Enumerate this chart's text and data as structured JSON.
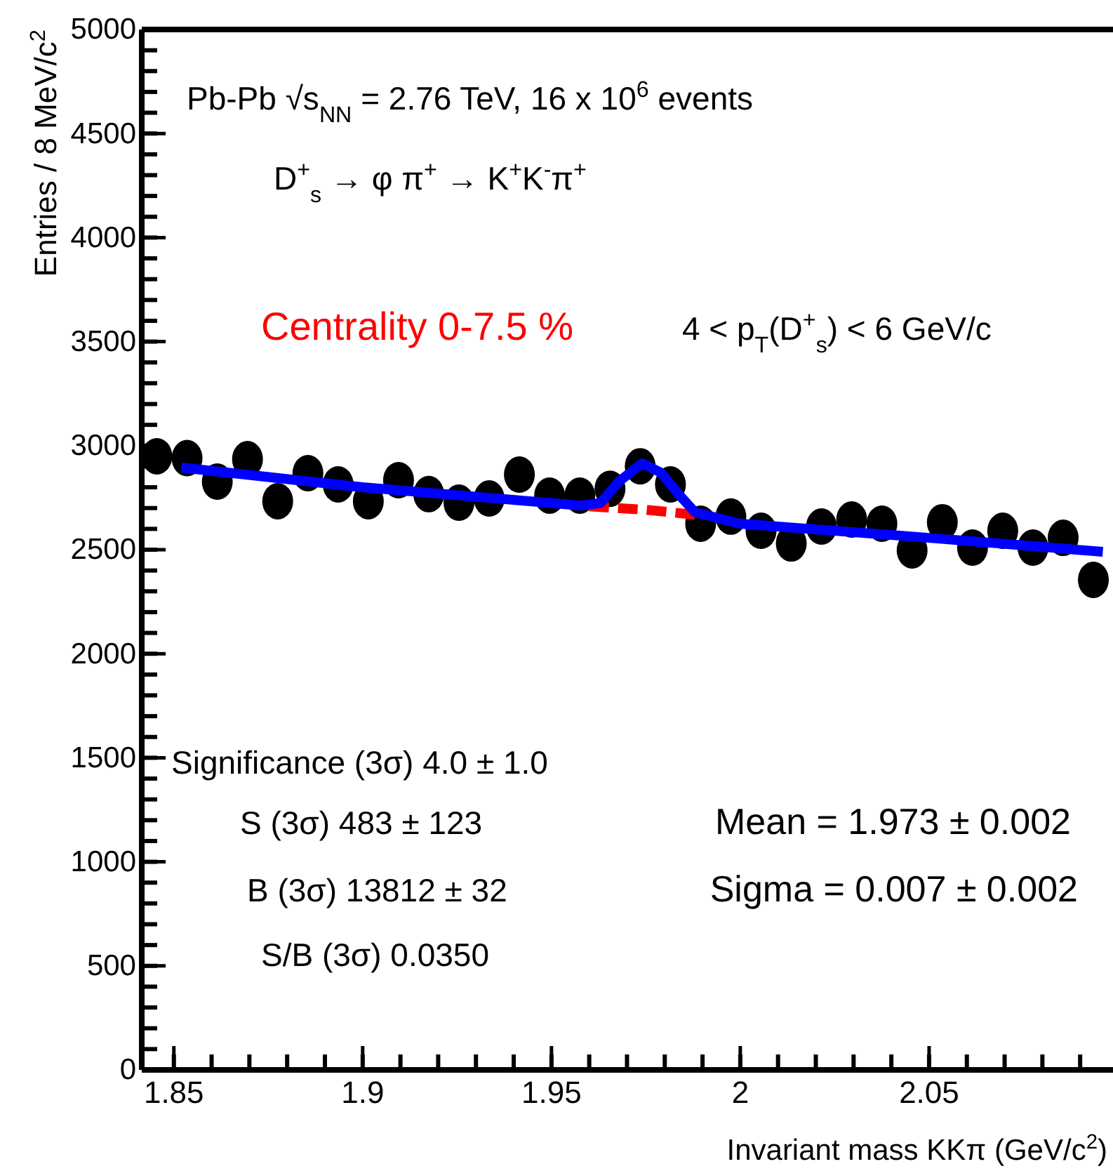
{
  "chart_data": {
    "type": "scatter",
    "xlabel": "Invariant mass KKπ (GeV/c$^{2}$)",
    "ylabel": "Entries / 8 MeV/c$^{2}$",
    "xlim": [
      1.8415,
      2.0987
    ],
    "ylim": [
      0,
      5000
    ],
    "xticks": [
      1.85,
      1.9,
      1.95,
      2,
      2.05
    ],
    "yticks": [
      0,
      500,
      1000,
      1500,
      2000,
      2500,
      3000,
      3500,
      4000,
      4500,
      5000
    ],
    "grid": false,
    "series": [
      {
        "marker": "circle",
        "color": "#000000",
        "x": [
          1.8455,
          1.8535,
          1.8615,
          1.8695,
          1.8775,
          1.8855,
          1.8935,
          1.9015,
          1.9095,
          1.9175,
          1.9255,
          1.9335,
          1.9415,
          1.9495,
          1.9575,
          1.9655,
          1.9735,
          1.9815,
          1.9895,
          1.9975,
          2.0055,
          2.0135,
          2.0215,
          2.0295,
          2.0375,
          2.0455,
          2.0535,
          2.0615,
          2.0695,
          2.0775,
          2.0855,
          2.0935
        ],
        "values": [
          2949,
          2940,
          2827,
          2935,
          2733,
          2868,
          2814,
          2733,
          2834,
          2767,
          2726,
          2746,
          2861,
          2760,
          2760,
          2793,
          2901,
          2814,
          2625,
          2659,
          2591,
          2530,
          2611,
          2645,
          2625,
          2497,
          2632,
          2510,
          2591,
          2510,
          2557,
          2355
        ]
      },
      {
        "type": "line",
        "color": "#ff0000",
        "line_style": "dashed",
        "x": [
          1.96,
          1.975,
          1.988
        ],
        "values": [
          2708,
          2692,
          2668
        ]
      },
      {
        "type": "line",
        "color": "#0000ff",
        "line_style": "solid",
        "x": [
          1.852,
          1.9,
          1.958,
          1.963,
          1.968,
          1.974,
          1.979,
          1.984,
          1.988,
          2.0,
          2.05,
          2.096
        ],
        "values": [
          2895,
          2800,
          2712,
          2725,
          2830,
          2915,
          2870,
          2760,
          2680,
          2625,
          2557,
          2490
        ]
      }
    ],
    "annotations": [
      "Pb-Pb √s$_{NN}$ = 2.76 TeV, 16 x 10$^{6}$ events",
      "D$^{+}$$_{s}$ → φ π$^{+}$ → K$^{+}$K$^{-}$π$^{+}$",
      "Centrality 0-7.5 %",
      "4 < p$_{T}$(D$^{+}$$_{s}$) < 6 GeV/c",
      "Significance (3σ) 4.0 ± 1.0",
      "S (3σ) 483 ± 123",
      "B (3σ) 13812 ± 32",
      "S/B (3σ) 0.0350",
      "Mean = 1.973 ± 0.002",
      "Sigma = 0.007 ± 0.002"
    ]
  }
}
